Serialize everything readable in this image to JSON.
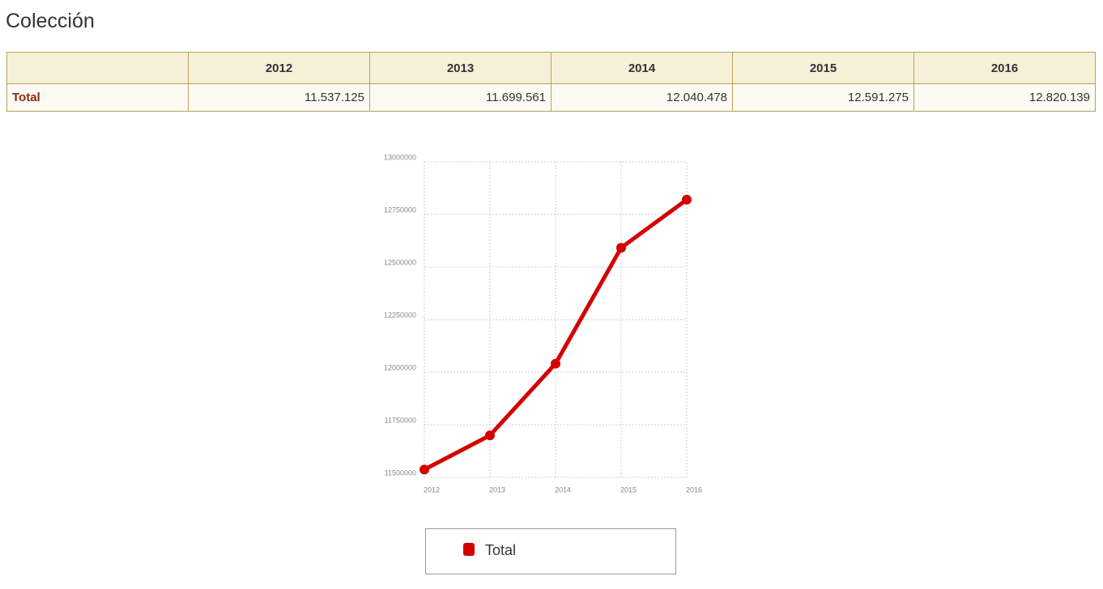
{
  "title": "Colección",
  "table": {
    "header": [
      "2012",
      "2013",
      "2014",
      "2015",
      "2016"
    ],
    "rows": [
      [
        "Total",
        "11.537.125",
        "11.699.561",
        "12.040.478",
        "12.591.275",
        "12.820.139"
      ]
    ]
  },
  "chart_data": {
    "type": "line",
    "categories": [
      "2012",
      "2013",
      "2014",
      "2015",
      "2016"
    ],
    "series": [
      {
        "name": "Total",
        "color": "#d40000",
        "values": [
          11537125,
          11699561,
          12040478,
          12591275,
          12820139
        ]
      }
    ],
    "ylim": [
      11500000,
      13000000
    ],
    "yticks": [
      11500000,
      11750000,
      12000000,
      12250000,
      12500000,
      12750000,
      13000000
    ],
    "grid": true
  }
}
